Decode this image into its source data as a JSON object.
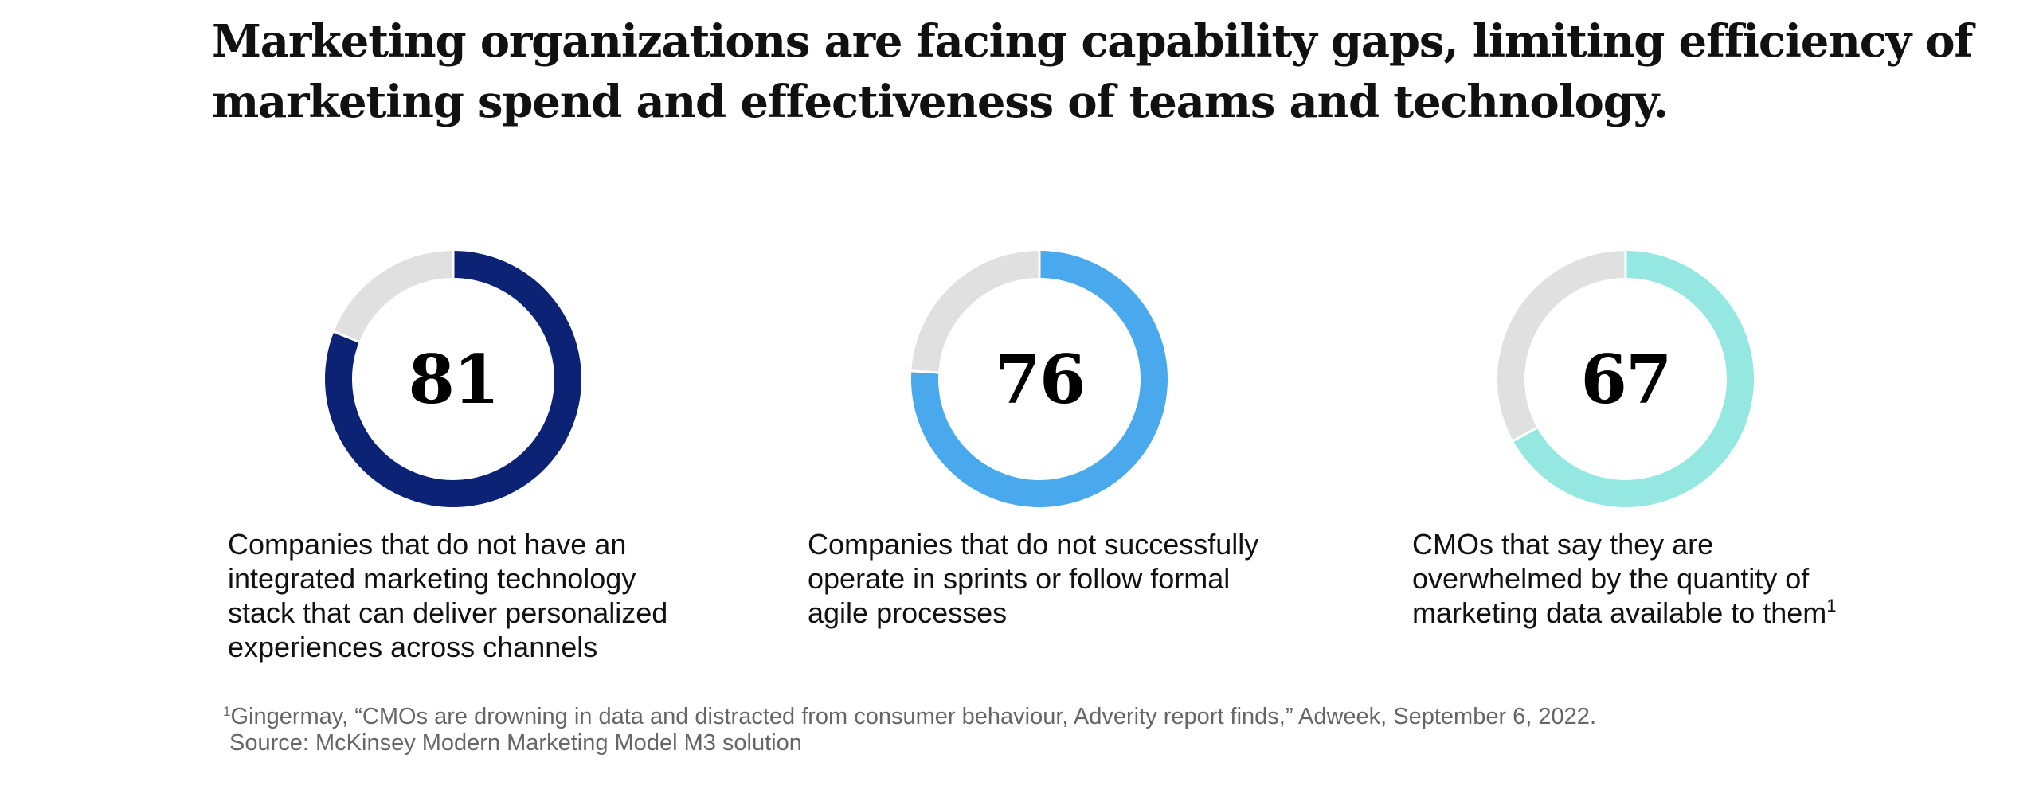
{
  "title_lines": [
    "Marketing organizations are facing capability gaps, limiting efficiency of",
    "marketing spend and effectiveness of teams and technology."
  ],
  "chart_data": {
    "type": "pie",
    "title": "Marketing organizations are facing capability gaps, limiting efficiency of marketing spend and effectiveness of teams and technology.",
    "unit": "percent",
    "items": [
      {
        "value": 81,
        "label": "Companies that do not have an integrated marketing technology stack that can deliver personalized experiences across channels",
        "label_lines": [
          "Companies that do not have an",
          "integrated marketing technology",
          "stack that can deliver personalized",
          "experiences across channels"
        ],
        "color": "#0b2275"
      },
      {
        "value": 76,
        "label": "Companies that do not successfully operate in sprints or follow formal agile processes",
        "label_lines": [
          "Companies that do not successfully",
          "operate in sprints or follow formal",
          "agile processes"
        ],
        "color": "#4aa8ed"
      },
      {
        "value": 67,
        "label": "CMOs that say they are overwhelmed by the quantity of marketing data available to them",
        "label_lines": [
          "CMOs that say they are",
          "overwhelmed by the quantity of",
          "marketing data available to them"
        ],
        "footnote_marker": "1",
        "color": "#95e8e2"
      }
    ],
    "track_color": "#e0e0e0"
  },
  "footnote": {
    "marker": "1",
    "text": "Gingermay, “CMOs are drowning in data and distracted from consumer behaviour, Adverity report finds,” Adweek, September 6, 2022.",
    "source": "Source: McKinsey Modern Marketing Model M3 solution"
  }
}
